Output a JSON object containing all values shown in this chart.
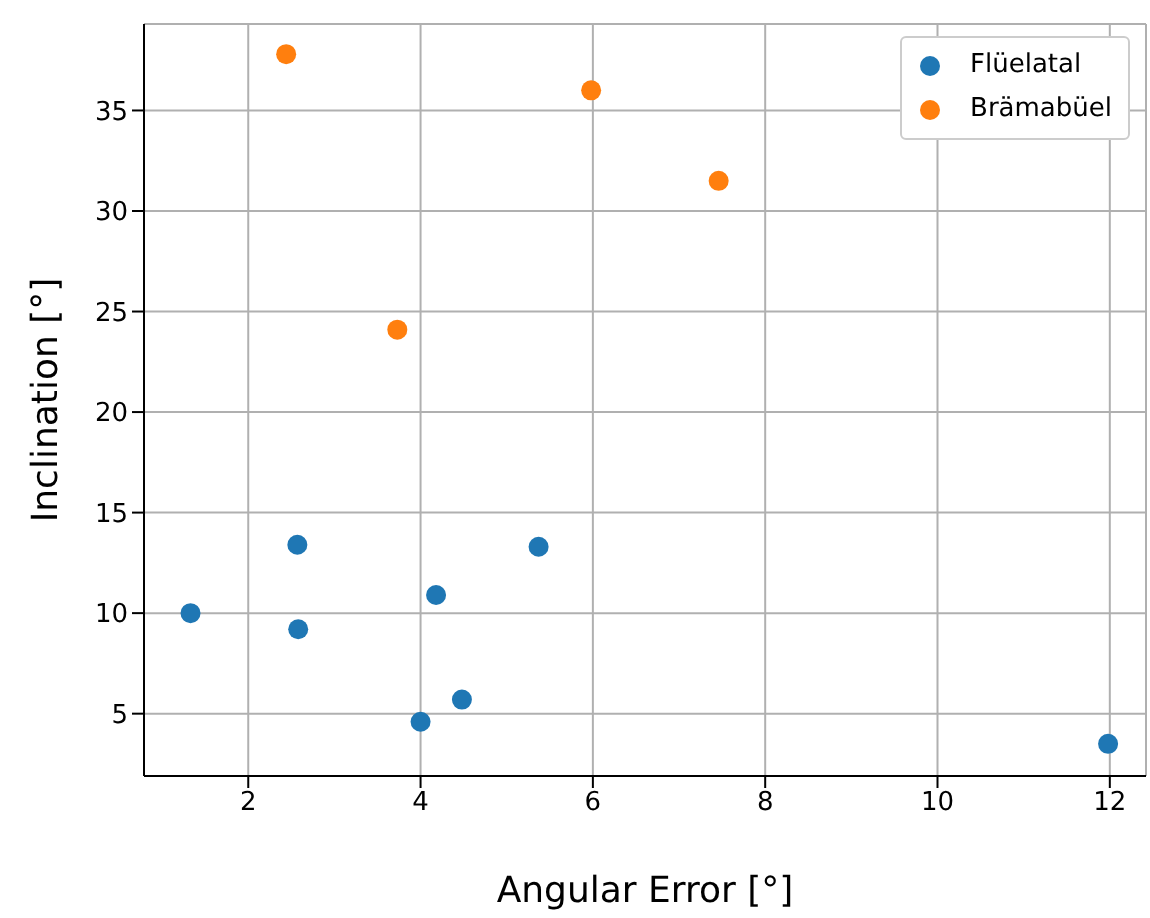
{
  "chart_data": {
    "type": "scatter",
    "xlabel": "Angular Error [°]",
    "ylabel": "Inclination [°]",
    "series": [
      {
        "name": "Flüelatal",
        "color": "#1f77b4",
        "x": [
          1.33,
          2.57,
          2.58,
          4.18,
          5.37,
          4.0,
          4.48,
          11.98
        ],
        "values": [
          10.0,
          13.4,
          9.2,
          10.9,
          13.3,
          4.6,
          5.7,
          3.5
        ]
      },
      {
        "name": "Brämabüel",
        "color": "#ff7f0e",
        "x": [
          2.44,
          3.73,
          5.98,
          7.46
        ],
        "values": [
          37.8,
          24.1,
          36.0,
          31.5
        ]
      }
    ],
    "xlim": [
      0.79,
      12.42
    ],
    "xticks": [
      2,
      4,
      6,
      8,
      10,
      12
    ],
    "ylim": [
      1.9,
      39.3
    ],
    "yticks": [
      5,
      10,
      15,
      20,
      25,
      30,
      35
    ],
    "grid": true,
    "legend": "top right",
    "marker": "circle"
  }
}
